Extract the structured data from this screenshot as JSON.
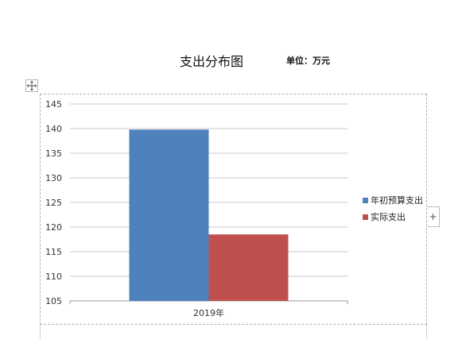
{
  "document": {
    "title": "支出分布图",
    "unit": "单位：万元"
  },
  "icons": {
    "move_handle": "move-arrows-icon",
    "add_element": "plus-icon"
  },
  "add_button_label": "+",
  "chart_data": {
    "type": "bar",
    "categories": [
      "2019年"
    ],
    "series": [
      {
        "name": "年初预算支出",
        "values": [
          139.8
        ],
        "color": "#4f81bd"
      },
      {
        "name": "实际支出",
        "values": [
          118.5
        ],
        "color": "#c0504d"
      }
    ],
    "ylim": [
      105,
      145
    ],
    "yticks": [
      105,
      110,
      115,
      120,
      125,
      130,
      135,
      140,
      145
    ],
    "grid": true,
    "legend_position": "right"
  }
}
